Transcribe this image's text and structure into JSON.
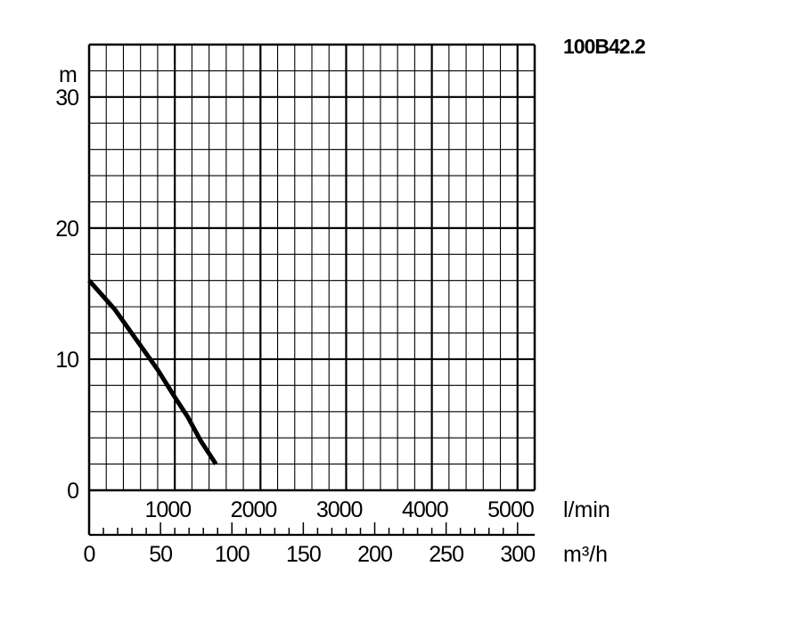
{
  "chart_data": {
    "type": "line",
    "title": "100B42.2",
    "ylabel": "m",
    "xlabel_flow": "l/min",
    "xlabel_volume": "m³/h",
    "ylim": [
      0,
      34
    ],
    "xlim_lmin": [
      0,
      5200
    ],
    "xlim_m3h": [
      0,
      312
    ],
    "y_ticks": [
      "0",
      "10",
      "20",
      "30"
    ],
    "x_ticks_lmin": [
      "1000",
      "2000",
      "3000",
      "4000",
      "5000"
    ],
    "x_ticks_m3h": [
      "0",
      "50",
      "100",
      "150",
      "200",
      "250",
      "300"
    ],
    "grid": true,
    "series": [
      {
        "x_lmin": [
          0,
          300,
          550,
          800,
          1000,
          1150,
          1300,
          1480
        ],
        "y": [
          16,
          13.8,
          11.5,
          9.2,
          7.1,
          5.6,
          3.8,
          2
        ]
      }
    ]
  }
}
